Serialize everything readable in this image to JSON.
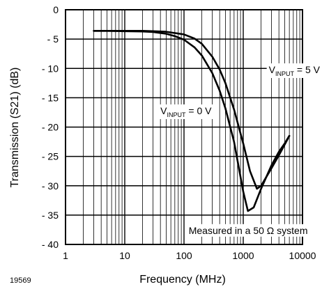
{
  "figure_id": "19569",
  "chart_data": {
    "type": "line",
    "xlabel": "Frequency (MHz)",
    "ylabel": "Transmission (S21) (dB)",
    "x_scale": "log",
    "xlim": [
      1,
      10000
    ],
    "ylim": [
      -40,
      0
    ],
    "grid": true,
    "x_ticks": [
      1,
      10,
      100,
      1000,
      10000
    ],
    "x_tick_labels": [
      "1",
      "10",
      "100",
      "1000",
      "10000"
    ],
    "y_ticks": [
      0,
      -5,
      -10,
      -15,
      -20,
      -25,
      -30,
      -35,
      -40
    ],
    "y_tick_labels": [
      "0",
      "- 5",
      "- 10",
      "- 15",
      "- 20",
      "- 25",
      "- 30",
      "- 35",
      "- 40"
    ],
    "annotations": [
      {
        "text_main": "V",
        "text_sub": "INPUT",
        "text_rest": " = 5 V",
        "x": 2700,
        "y": -10.8
      },
      {
        "text_main": "V",
        "text_sub": "INPUT",
        "text_rest": " = 0 V",
        "x": 40,
        "y": -17.8
      },
      {
        "text": "Measured in a 50 Ω system",
        "x": 120,
        "y": -38.2
      }
    ],
    "series": [
      {
        "x": [
          3,
          5,
          10,
          20,
          30,
          50,
          70,
          100,
          150,
          200,
          300,
          400,
          500,
          700,
          1000,
          1200,
          1500,
          2000,
          3000,
          4000,
          5000,
          6000
        ],
        "y": [
          -3.6,
          -3.6,
          -3.65,
          -3.7,
          -3.8,
          -4.1,
          -4.5,
          -5.1,
          -6.4,
          -7.8,
          -10.8,
          -13.8,
          -16.8,
          -22.5,
          -31.0,
          -34.3,
          -33.7,
          -30.5,
          -26.5,
          -24.2,
          -22.8,
          -21.5
        ]
      },
      {
        "x": [
          3,
          5,
          10,
          20,
          30,
          50,
          100,
          150,
          200,
          300,
          400,
          500,
          700,
          1000,
          1300,
          1700,
          2000,
          3000,
          4000,
          5000,
          6000
        ],
        "y": [
          -3.6,
          -3.6,
          -3.6,
          -3.6,
          -3.65,
          -3.75,
          -4.2,
          -4.9,
          -5.8,
          -8.0,
          -10.2,
          -12.5,
          -17.0,
          -22.8,
          -27.5,
          -30.5,
          -30.0,
          -27.0,
          -24.8,
          -23.0,
          -21.5
        ]
      }
    ]
  }
}
